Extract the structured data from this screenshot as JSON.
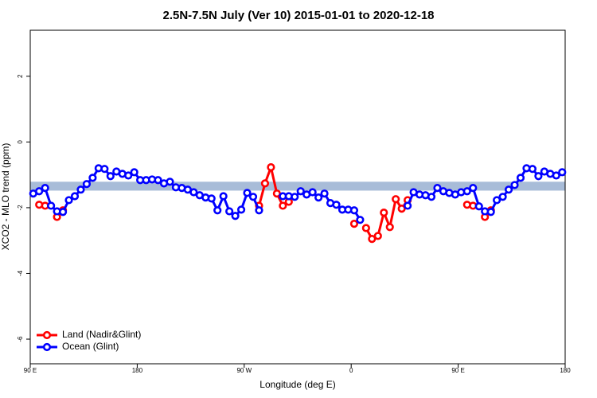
{
  "chart_data": {
    "type": "line",
    "title": "2.5N-7.5N July (Ver 10)   2015-01-01 to 2020-12-18",
    "x_label": "Longitude (deg E)",
    "y_label": "XCO2 - MLO trend (ppm)",
    "xlim": [
      90,
      540
    ],
    "xticks": [
      {
        "value": 90,
        "label": "90 E"
      },
      {
        "value": 180,
        "label": "180"
      },
      {
        "value": 270,
        "label": "90 W"
      },
      {
        "value": 360,
        "label": "0"
      },
      {
        "value": 450,
        "label": "90 E"
      },
      {
        "value": 540,
        "label": "180"
      }
    ],
    "ylim": [
      -6.75,
      3.4
    ],
    "yticks": [
      -6,
      -4,
      -2,
      0,
      2
    ],
    "reference_band": [
      -1.48,
      -1.21
    ],
    "band_color": "#a8bcd8",
    "legend": "bottom-left",
    "x": [
      92.5,
      97.5,
      102.5,
      107.5,
      112.5,
      117.5,
      122.5,
      127.5,
      132.5,
      137.5,
      142.5,
      147.5,
      152.5,
      157.5,
      162.5,
      167.5,
      172.5,
      177.5,
      182.5,
      187.5,
      192.5,
      197.5,
      202.5,
      207.5,
      212.5,
      217.5,
      222.5,
      227.5,
      232.5,
      237.5,
      242.5,
      247.5,
      252.5,
      257.5,
      262.5,
      267.5,
      272.5,
      277.5,
      282.5,
      287.5,
      292.5,
      297.5,
      302.5,
      307.5,
      312.5,
      317.5,
      322.5,
      327.5,
      332.5,
      337.5,
      342.5,
      347.5,
      352.5,
      357.5,
      362.5,
      367.5,
      372.5,
      377.5,
      382.5,
      387.5,
      392.5,
      397.5,
      402.5,
      407.5,
      412.5,
      417.5,
      422.5,
      427.5,
      432.5,
      437.5,
      442.5,
      447.5,
      452.5,
      457.5,
      462.5,
      467.5,
      472.5,
      477.5,
      482.5,
      487.5,
      492.5,
      497.5,
      502.5,
      507.5,
      512.5,
      517.5,
      522.5,
      527.5,
      532.5,
      537.5
    ],
    "series": [
      {
        "name": "Land (Nadir&Glint)",
        "color": "#ff0000",
        "values": [
          null,
          -1.91,
          -1.94,
          null,
          -2.28,
          -2.08,
          null,
          null,
          null,
          null,
          null,
          null,
          null,
          null,
          null,
          null,
          null,
          null,
          null,
          null,
          null,
          null,
          null,
          null,
          null,
          null,
          null,
          null,
          null,
          null,
          null,
          null,
          null,
          null,
          null,
          null,
          null,
          null,
          -1.94,
          -1.26,
          -0.77,
          -1.57,
          -1.94,
          -1.82,
          null,
          null,
          null,
          null,
          null,
          null,
          null,
          null,
          null,
          null,
          -2.49,
          null,
          -2.62,
          -2.95,
          -2.86,
          -2.15,
          -2.59,
          -1.74,
          -2.03,
          -1.77,
          null,
          null,
          null,
          null,
          null,
          null,
          null,
          null,
          null,
          -1.91,
          -1.94,
          null,
          -2.28,
          -2.08,
          null,
          null,
          null,
          null,
          null,
          null,
          null,
          null,
          null,
          null,
          null,
          null
        ]
      },
      {
        "name": "Ocean (Glint)",
        "color": "#0000ff",
        "values": [
          -1.57,
          -1.5,
          -1.4,
          -1.94,
          -2.11,
          -2.13,
          -1.77,
          -1.65,
          -1.45,
          -1.28,
          -1.09,
          -0.8,
          -0.82,
          -1.04,
          -0.9,
          -0.97,
          -1.02,
          -0.92,
          -1.16,
          -1.16,
          -1.14,
          -1.16,
          -1.26,
          -1.21,
          -1.38,
          -1.4,
          -1.45,
          -1.53,
          -1.62,
          -1.69,
          -1.72,
          -2.08,
          -1.65,
          -2.11,
          -2.25,
          -2.06,
          -1.55,
          -1.67,
          -2.08,
          null,
          null,
          null,
          -1.65,
          -1.65,
          -1.67,
          -1.5,
          -1.6,
          -1.53,
          -1.69,
          -1.57,
          -1.86,
          -1.91,
          -2.06,
          -2.06,
          -2.08,
          -2.37,
          null,
          null,
          null,
          null,
          null,
          null,
          null,
          -1.94,
          -1.53,
          -1.6,
          -1.62,
          -1.67,
          -1.4,
          -1.5,
          -1.55,
          -1.6,
          -1.53,
          -1.5,
          -1.4,
          -1.96,
          -2.11,
          -2.13,
          -1.77,
          -1.67,
          -1.45,
          -1.31,
          -1.09,
          -0.8,
          -0.82,
          -1.04,
          -0.9,
          -0.97,
          -1.02,
          -0.92
        ]
      }
    ]
  }
}
